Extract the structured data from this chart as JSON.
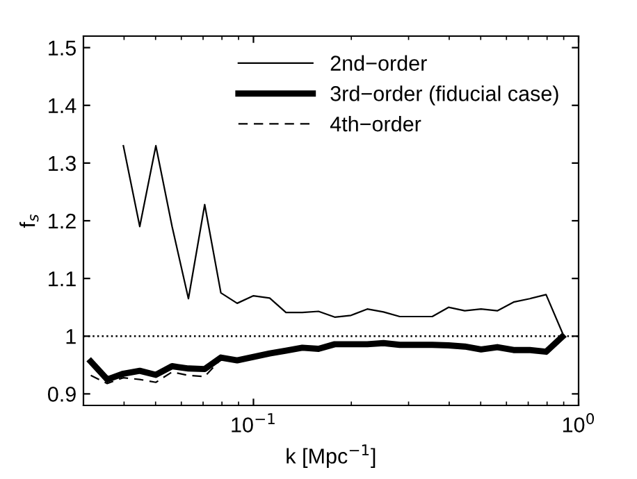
{
  "chart_data": {
    "type": "line",
    "xlabel": "k [Mpc$^{−1}$]",
    "ylabel": "f$_{s}$",
    "x": [
      0.0316,
      0.0355,
      0.0398,
      0.0447,
      0.0501,
      0.0562,
      0.0631,
      0.0708,
      0.0794,
      0.0891,
      0.1,
      0.1122,
      0.1259,
      0.1413,
      0.1585,
      0.1778,
      0.1995,
      0.2239,
      0.2512,
      0.2818,
      0.3162,
      0.3548,
      0.3981,
      0.4467,
      0.5012,
      0.5623,
      0.631,
      0.7079,
      0.7943,
      0.8913
    ],
    "series": [
      {
        "name": "2nd−order",
        "color": "#000000",
        "line_style": "solid",
        "values": [
          null,
          null,
          1.33,
          1.19,
          1.33,
          1.19,
          1.065,
          1.228,
          1.075,
          1.057,
          1.07,
          1.066,
          1.041,
          1.041,
          1.043,
          1.033,
          1.036,
          1.047,
          1.042,
          1.034,
          1.034,
          1.034,
          1.05,
          1.044,
          1.047,
          1.044,
          1.059,
          1.065,
          1.072,
          1.006
        ]
      },
      {
        "name": "3rd−order (fiducial case)",
        "color": "#000000",
        "line_style": "solid",
        "values": [
          0.956,
          0.925,
          0.935,
          0.94,
          0.933,
          0.948,
          0.944,
          0.943,
          0.963,
          0.958,
          0.964,
          0.97,
          0.975,
          0.98,
          0.978,
          0.986,
          0.986,
          0.986,
          0.988,
          0.985,
          0.985,
          0.985,
          0.984,
          0.982,
          0.977,
          0.981,
          0.976,
          0.976,
          0.973,
          0.999
        ]
      },
      {
        "name": "4th−order",
        "color": "#000000",
        "line_style": "dashed",
        "values": [
          0.932,
          0.918,
          0.928,
          0.925,
          0.92,
          0.938,
          0.932,
          0.93,
          0.96,
          0.956,
          0.962,
          0.968,
          0.973,
          0.978,
          0.976,
          0.984,
          0.984,
          0.984,
          0.986,
          0.983,
          0.983,
          0.983,
          0.982,
          0.98,
          0.975,
          0.979,
          0.974,
          0.974,
          0.971,
          0.997
        ]
      }
    ],
    "log": "x",
    "xlim": [
      0.03,
      1
    ],
    "xticks": [
      {
        "value": 0.1,
        "label": "10$^{−1}$"
      },
      {
        "value": 1,
        "label": "10$^{0}$"
      }
    ],
    "ylim": [
      0.88,
      1.52
    ],
    "yticks": [
      0.9,
      1,
      1.1,
      1.2,
      1.3,
      1.4,
      1.5
    ],
    "ref_lines": [
      {
        "axis": "y",
        "value": 1,
        "line_style": "dotted",
        "color": "#000000"
      }
    ],
    "grid": false,
    "legend": "top right",
    "marker": "none"
  }
}
